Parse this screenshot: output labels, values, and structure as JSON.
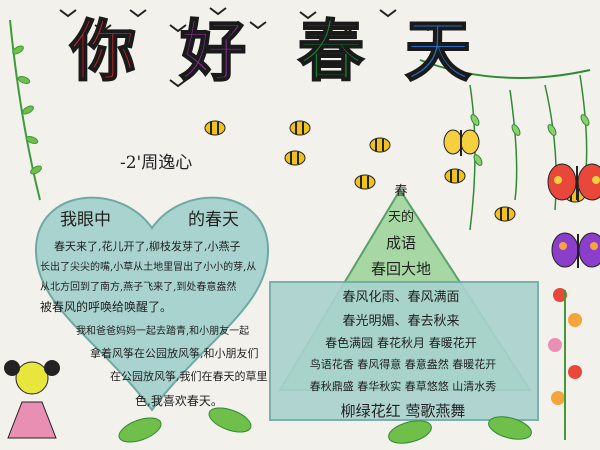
{
  "title": {
    "chars": [
      "你",
      "好",
      "春",
      "天"
    ],
    "colors": [
      "#d8262c",
      "#8a2d9c",
      "#1b8a3a",
      "#1f6fc4"
    ]
  },
  "author": "-2'周逸心",
  "heart": {
    "title_left": "我眼中",
    "title_right": "的春天",
    "lines": [
      "春天来了,花儿开了,柳枝发芽了,小燕子",
      "长出了尖尖的嘴,小草从土地里冒出了小小的芽,从",
      "从北方回到了南方,燕子飞来了,到处春意盎然",
      "被春风的呼唤给唤醒了。",
      "我和爸爸妈妈一起去踏青,和小朋友一起",
      "拿着风筝在公园放风筝,和小朋友们",
      "在公园放风筝,我们在春天的草里",
      "色,我喜欢春天。"
    ]
  },
  "poem": {
    "heading": [
      "春",
      "天的",
      "成语"
    ],
    "lines": [
      "春回大地",
      "春风化雨、春风满面",
      "春光明媚、春去秋来",
      "春色满园 春花秋月 春暖花开",
      "鸟语花香 春风得意 春意盎然 春暖花开",
      "春秋鼎盛 春华秋实 春草悠悠 山清水秀",
      "柳绿花红 莺歌燕舞"
    ]
  },
  "colors": {
    "heart_fill": "#a9d3cf",
    "triangle_fill": "#a7d8a4",
    "leaf_green": "#3e9b3a",
    "bee_yellow": "#f1c21b"
  }
}
